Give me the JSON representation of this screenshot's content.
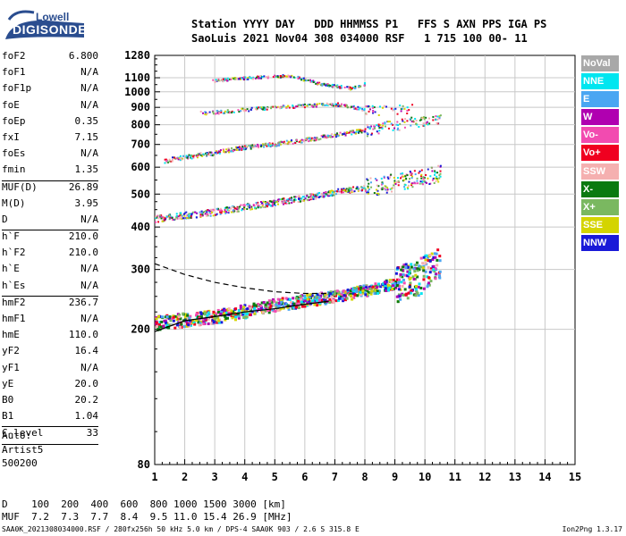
{
  "logo": {
    "top": "Lowell",
    "bottom": "DIGISONDE"
  },
  "header": {
    "line1": "Station YYYY DAY   DDD HHMMSS P1   FFS S AXN PPS IGA PS",
    "line2": "SaoLuis 2021 Nov04 308 034000 RSF   1 715 100 00- 11"
  },
  "params": [
    {
      "name": "foF2",
      "value": "6.800"
    },
    {
      "name": "foF1",
      "value": "N/A"
    },
    {
      "name": "foF1p",
      "value": "N/A"
    },
    {
      "name": "foE",
      "value": "N/A"
    },
    {
      "name": "foEp",
      "value": "0.35"
    },
    {
      "name": "fxI",
      "value": "7.15"
    },
    {
      "name": "foEs",
      "value": "N/A"
    },
    {
      "name": "fmin",
      "value": "1.35",
      "sep": true
    },
    {
      "name": "MUF(D)",
      "value": "26.89"
    },
    {
      "name": "M(D)",
      "value": "3.95"
    },
    {
      "name": "D",
      "value": "N/A",
      "sep": true
    },
    {
      "name": "h`F",
      "value": "210.0"
    },
    {
      "name": "h`F2",
      "value": "210.0"
    },
    {
      "name": "h`E",
      "value": "N/A"
    },
    {
      "name": "h`Es",
      "value": "N/A",
      "sep": true
    },
    {
      "name": "hmF2",
      "value": "236.7"
    },
    {
      "name": "hmF1",
      "value": "N/A"
    },
    {
      "name": "hmE",
      "value": "110.0"
    },
    {
      "name": "yF2",
      "value": "16.4"
    },
    {
      "name": "yF1",
      "value": "N/A"
    },
    {
      "name": "yE",
      "value": "20.0"
    },
    {
      "name": "B0",
      "value": "20.2"
    },
    {
      "name": "B1",
      "value": "1.04",
      "sep": true
    },
    {
      "name": "C-level",
      "value": "33",
      "sep": true
    }
  ],
  "auto": {
    "line1": "Auto:",
    "line2": "Artist5",
    "line3": "500200"
  },
  "legend": [
    {
      "label": "NoVal",
      "color": "#a8a8a8"
    },
    {
      "label": "NNE",
      "color": "#00e6f0"
    },
    {
      "label": "E",
      "color": "#4aa6f2"
    },
    {
      "label": "W",
      "color": "#b000b0"
    },
    {
      "label": "Vo-",
      "color": "#f24bb0"
    },
    {
      "label": "Vo+",
      "color": "#f00020"
    },
    {
      "label": "SSW",
      "color": "#f5b0b0"
    },
    {
      "label": "X-",
      "color": "#0a7a10"
    },
    {
      "label": "X+",
      "color": "#7ab860"
    },
    {
      "label": "SSE",
      "color": "#d4d400"
    },
    {
      "label": "NNW",
      "color": "#1a1ad8"
    }
  ],
  "bottom": {
    "d_row": "D    100  200  400  600  800 1000 1500 3000 [km]",
    "muf_row": "MUF  7.2  7.3  7.7  8.4  9.5 11.0 15.4 26.9 [MHz]",
    "footer": "SAA0K_2021308034000.RSF / 280fx256h 50 kHz 5.0 km / DPS-4 SAA0K 903 / 2.6 S 315.8 E",
    "version": "Ion2Png 1.3.17"
  },
  "chart_data": {
    "type": "scatter",
    "xlim": [
      1,
      15
    ],
    "ylim": [
      80,
      1280
    ],
    "y_scale": "log",
    "x_ticks": [
      "1",
      "2",
      "3",
      "4",
      "5",
      "6",
      "7",
      "8",
      "9",
      "10",
      "11",
      "12",
      "13",
      "14",
      "15"
    ],
    "y_ticks": [
      "80",
      "200",
      "300",
      "400",
      "500",
      "600",
      "700",
      "800",
      "900",
      "1000",
      "1100",
      "1280"
    ],
    "grid": true,
    "traces": [
      {
        "name": "1st hop",
        "x": [
          1.0,
          2.0,
          3.0,
          4.0,
          5.0,
          6.0,
          7.0,
          8.0,
          9.0,
          9.8,
          10.2,
          10.5
        ],
        "y": [
          210,
          215,
          220,
          228,
          238,
          245,
          252,
          262,
          275,
          290,
          310,
          320
        ]
      },
      {
        "name": "2nd hop",
        "x": [
          1.0,
          2.0,
          3.0,
          4.0,
          5.0,
          6.0,
          7.0,
          8.0,
          9.0,
          10.0,
          10.5
        ],
        "y": [
          425,
          435,
          445,
          460,
          475,
          490,
          510,
          525,
          545,
          565,
          580
        ]
      },
      {
        "name": "3rd hop",
        "x": [
          1.3,
          2.0,
          3.0,
          4.0,
          5.0,
          6.0,
          7.0,
          8.0,
          9.0,
          10.0,
          10.5
        ],
        "y": [
          630,
          645,
          665,
          690,
          705,
          725,
          750,
          775,
          800,
          825,
          840
        ]
      },
      {
        "name": "4th hop",
        "x": [
          2.5,
          3.0,
          4.0,
          5.0,
          6.0,
          7.0,
          8.0,
          8.8,
          9.6
        ],
        "y": [
          870,
          875,
          890,
          905,
          915,
          925,
          890,
          890,
          900
        ]
      },
      {
        "name": "5th hop",
        "x": [
          2.9,
          3.5,
          4.5,
          5.5,
          6.5,
          7.5,
          8.0
        ],
        "y": [
          1080,
          1095,
          1110,
          1120,
          1060,
          1030,
          1060
        ]
      }
    ],
    "profile_solid": {
      "x": [
        1.0,
        2.0,
        3.0,
        4.0,
        5.0,
        6.0,
        6.8
      ],
      "y": [
        197,
        212,
        218,
        225,
        230,
        237,
        242
      ]
    },
    "profile_dashed": {
      "x": [
        1.0,
        2.0,
        3.0,
        4.0,
        5.0,
        6.0,
        6.8
      ],
      "y": [
        312,
        290,
        275,
        265,
        258,
        255,
        255
      ]
    }
  }
}
